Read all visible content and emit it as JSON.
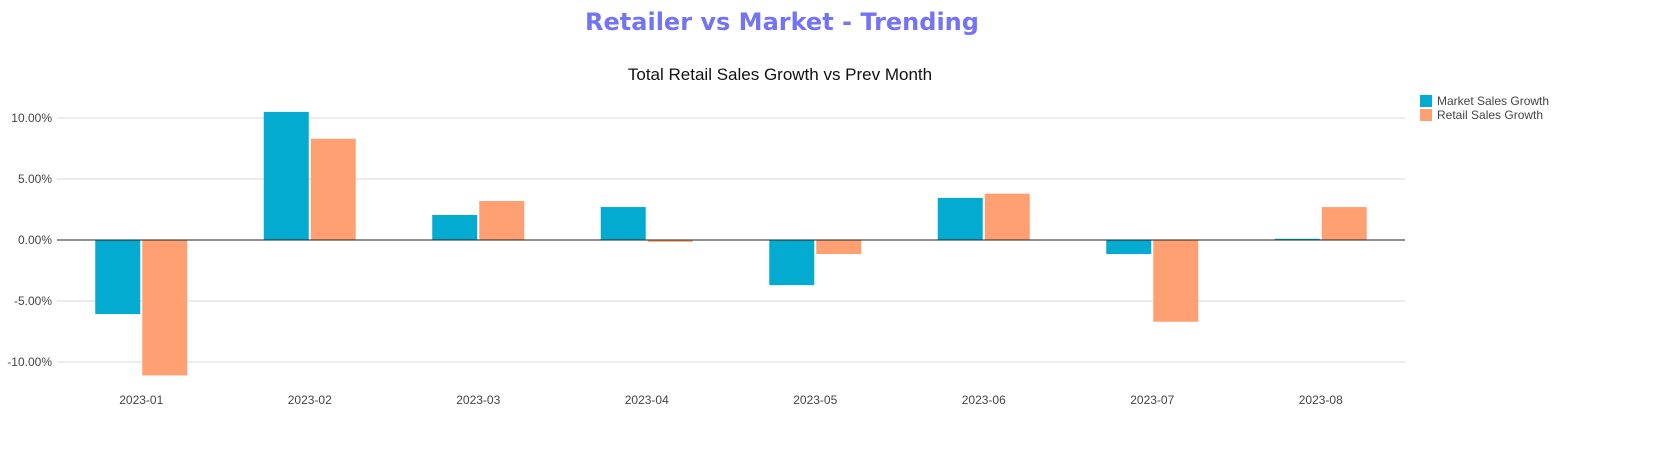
{
  "page_title": "Retailer vs Market - Trending",
  "colors": {
    "title": "#7373f5",
    "market": "#02abcf",
    "retail": "#ffa073"
  },
  "chart_data": {
    "type": "bar",
    "title": "Total Retail Sales Growth vs Prev Month",
    "xlabel": "",
    "ylabel": "",
    "categories": [
      "2023-01",
      "2023-02",
      "2023-03",
      "2023-04",
      "2023-05",
      "2023-06",
      "2023-07",
      "2023-08"
    ],
    "series": [
      {
        "name": "Market Sales Growth",
        "values": [
          -6.07,
          10.5,
          2.05,
          2.7,
          -3.7,
          3.45,
          -1.15,
          0.1
        ]
      },
      {
        "name": "Retail Sales Growth",
        "values": [
          -11.1,
          8.3,
          3.2,
          -0.15,
          -1.15,
          3.8,
          -6.7,
          2.7
        ]
      }
    ],
    "ylim": [
      -12.3,
      12.6
    ],
    "yticks": [
      10,
      5,
      0,
      -5,
      -10
    ],
    "ytick_labels": [
      "10.00%",
      "5.00%",
      "0.00%",
      "-5.00%",
      "-10.00%"
    ],
    "grid": true,
    "legend": "top-right"
  }
}
